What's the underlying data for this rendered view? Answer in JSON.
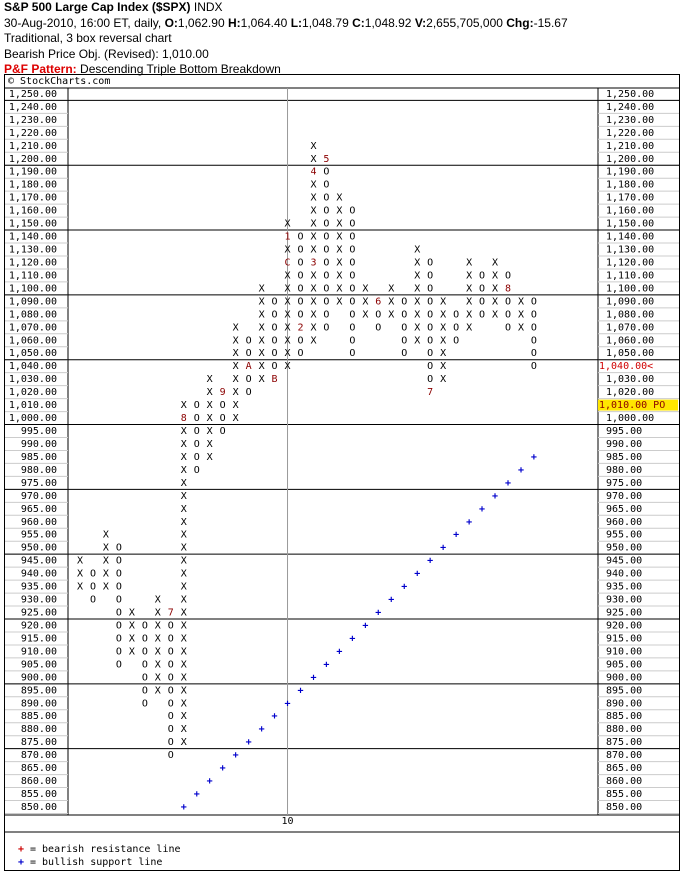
{
  "header": {
    "title": "S&P 500 Large Cap Index ($SPX)",
    "exchange": "INDX",
    "date": "30-Aug-2010, 16:00 ET, daily,",
    "quote": [
      {
        "key": "O:",
        "value": "1,062.90"
      },
      {
        "key": "H:",
        "value": "1,064.40"
      },
      {
        "key": "L:",
        "value": "1,048.79"
      },
      {
        "key": "C:",
        "value": "1,048.92"
      },
      {
        "key": "V:",
        "value": "2,655,705,000"
      },
      {
        "key": "Chg:",
        "value": "-15.67"
      }
    ],
    "chart_kind": "Traditional, 3 box reversal chart",
    "objective": "Bearish Price Obj. (Revised): 1,010.00",
    "pattern_key": "P&F Pattern:",
    "pattern": "Descending Triple Bottom Breakdown"
  },
  "chart_data": {
    "type": "point-and-figure",
    "copyright": "© StockCharts.com",
    "yticks": [
      {
        "value": 850,
        "label": "850.00"
      },
      {
        "value": 855,
        "label": "855.00"
      },
      {
        "value": 860,
        "label": "860.00"
      },
      {
        "value": 865,
        "label": "865.00"
      },
      {
        "value": 870,
        "label": "870.00"
      },
      {
        "value": 875,
        "label": "875.00"
      },
      {
        "value": 880,
        "label": "880.00"
      },
      {
        "value": 885,
        "label": "885.00"
      },
      {
        "value": 890,
        "label": "890.00"
      },
      {
        "value": 895,
        "label": "895.00"
      },
      {
        "value": 900,
        "label": "900.00"
      },
      {
        "value": 905,
        "label": "905.00"
      },
      {
        "value": 910,
        "label": "910.00"
      },
      {
        "value": 915,
        "label": "915.00"
      },
      {
        "value": 920,
        "label": "920.00"
      },
      {
        "value": 925,
        "label": "925.00"
      },
      {
        "value": 930,
        "label": "930.00"
      },
      {
        "value": 935,
        "label": "935.00"
      },
      {
        "value": 940,
        "label": "940.00"
      },
      {
        "value": 945,
        "label": "945.00"
      },
      {
        "value": 950,
        "label": "950.00"
      },
      {
        "value": 955,
        "label": "955.00"
      },
      {
        "value": 960,
        "label": "960.00"
      },
      {
        "value": 965,
        "label": "965.00"
      },
      {
        "value": 970,
        "label": "970.00"
      },
      {
        "value": 975,
        "label": "975.00"
      },
      {
        "value": 980,
        "label": "980.00"
      },
      {
        "value": 985,
        "label": "985.00"
      },
      {
        "value": 990,
        "label": "990.00"
      },
      {
        "value": 995,
        "label": "995.00"
      },
      {
        "value": 1000,
        "label": "1,000.00"
      },
      {
        "value": 1010,
        "label": "1,010.00"
      },
      {
        "value": 1020,
        "label": "1,020.00"
      },
      {
        "value": 1030,
        "label": "1,030.00"
      },
      {
        "value": 1040,
        "label": "1,040.00"
      },
      {
        "value": 1050,
        "label": "1,050.00"
      },
      {
        "value": 1060,
        "label": "1,060.00"
      },
      {
        "value": 1070,
        "label": "1,070.00"
      },
      {
        "value": 1080,
        "label": "1,080.00"
      },
      {
        "value": 1090,
        "label": "1,090.00"
      },
      {
        "value": 1100,
        "label": "1,100.00"
      },
      {
        "value": 1110,
        "label": "1,110.00"
      },
      {
        "value": 1120,
        "label": "1,120.00"
      },
      {
        "value": 1130,
        "label": "1,130.00"
      },
      {
        "value": 1140,
        "label": "1,140.00"
      },
      {
        "value": 1150,
        "label": "1,150.00"
      },
      {
        "value": 1160,
        "label": "1,160.00"
      },
      {
        "value": 1170,
        "label": "1,170.00"
      },
      {
        "value": 1180,
        "label": "1,180.00"
      },
      {
        "value": 1190,
        "label": "1,190.00"
      },
      {
        "value": 1200,
        "label": "1,200.00"
      },
      {
        "value": 1210,
        "label": "1,210.00"
      },
      {
        "value": 1220,
        "label": "1,220.00"
      },
      {
        "value": 1230,
        "label": "1,230.00"
      },
      {
        "value": 1240,
        "label": "1,240.00"
      },
      {
        "value": 1250,
        "label": "1,250.00"
      }
    ],
    "current_price": {
      "value": 1040,
      "label": "1,040.00<",
      "color": "#d00000"
    },
    "price_objective": {
      "value": 1010,
      "label": "1,010.00 PO",
      "color": "#ffe600"
    },
    "columns": [
      {
        "kind": "X",
        "boxes": [
          935,
          940,
          945
        ]
      },
      {
        "kind": "O",
        "boxes": [
          930,
          935,
          940
        ]
      },
      {
        "kind": "X",
        "boxes": [
          935,
          940,
          945,
          950,
          955
        ]
      },
      {
        "kind": "O",
        "boxes": [
          905,
          910,
          915,
          920,
          925,
          930,
          935,
          940,
          945,
          950
        ]
      },
      {
        "kind": "X",
        "boxes": [
          910,
          915,
          920,
          925
        ]
      },
      {
        "kind": "O",
        "boxes": [
          890,
          895,
          900,
          905,
          910,
          915,
          920
        ]
      },
      {
        "kind": "X",
        "boxes": [
          895,
          900,
          905,
          910,
          915,
          920,
          925,
          930
        ]
      },
      {
        "kind": "O",
        "boxes": [
          870,
          875,
          880,
          885,
          890,
          895,
          900,
          905,
          910,
          915,
          920
        ],
        "months": [
          {
            "value": 925,
            "label": "7"
          }
        ]
      },
      {
        "kind": "X",
        "boxes": [
          875,
          880,
          885,
          890,
          895,
          900,
          905,
          910,
          915,
          920,
          925,
          930,
          935,
          940,
          945,
          950,
          955,
          960,
          965,
          970,
          975,
          980,
          985,
          990,
          995,
          1010
        ],
        "months": [
          {
            "value": 1000,
            "label": "8"
          }
        ]
      },
      {
        "kind": "O",
        "boxes": [
          980,
          985,
          990,
          995,
          1000,
          1010
        ]
      },
      {
        "kind": "X",
        "boxes": [
          985,
          990,
          995,
          1000,
          1010,
          1020,
          1030
        ]
      },
      {
        "kind": "O",
        "boxes": [
          995,
          1000,
          1010
        ],
        "months": [
          {
            "value": 1020,
            "label": "9"
          }
        ]
      },
      {
        "kind": "X",
        "boxes": [
          1000,
          1010,
          1020,
          1030,
          1040,
          1050,
          1060,
          1070
        ]
      },
      {
        "kind": "O",
        "boxes": [
          1020,
          1030,
          1050,
          1060
        ],
        "months": [
          {
            "value": 1040,
            "label": "A"
          }
        ]
      },
      {
        "kind": "X",
        "boxes": [
          1030,
          1040,
          1050,
          1060,
          1070,
          1080,
          1090,
          1100
        ]
      },
      {
        "kind": "O",
        "boxes": [
          1040,
          1050,
          1060,
          1070,
          1080,
          1090
        ],
        "months": [
          {
            "value": 1030,
            "label": "B"
          }
        ]
      },
      {
        "kind": "X",
        "boxes": [
          1040,
          1050,
          1060,
          1070,
          1080,
          1090,
          1100,
          1110,
          1130,
          1150
        ],
        "months": [
          {
            "value": 1120,
            "label": "C"
          },
          {
            "value": 1140,
            "label": "1"
          }
        ]
      },
      {
        "kind": "O",
        "boxes": [
          1050,
          1060,
          1080,
          1090,
          1100,
          1110,
          1120,
          1130,
          1140
        ],
        "months": [
          {
            "value": 1070,
            "label": "2"
          }
        ]
      },
      {
        "kind": "X",
        "boxes": [
          1060,
          1070,
          1080,
          1090,
          1100,
          1110,
          1130,
          1140,
          1150,
          1160,
          1170,
          1180,
          1200,
          1210
        ],
        "months": [
          {
            "value": 1120,
            "label": "3"
          },
          {
            "value": 1190,
            "label": "4"
          }
        ]
      },
      {
        "kind": "O",
        "boxes": [
          1070,
          1080,
          1090,
          1100,
          1110,
          1120,
          1130,
          1140,
          1150,
          1160,
          1170,
          1180,
          1190
        ],
        "months": [
          {
            "value": 1200,
            "label": "5"
          }
        ]
      },
      {
        "kind": "X",
        "boxes": [
          1090,
          1100,
          1110,
          1120,
          1130,
          1140,
          1150,
          1160,
          1170
        ]
      },
      {
        "kind": "O",
        "boxes": [
          1050,
          1060,
          1070,
          1080,
          1090,
          1100,
          1110,
          1120,
          1130,
          1140,
          1150,
          1160
        ]
      },
      {
        "kind": "X",
        "boxes": [
          1080,
          1090,
          1100
        ]
      },
      {
        "kind": "O",
        "boxes": [
          1070,
          1080
        ],
        "months": [
          {
            "value": 1090,
            "label": "6"
          }
        ]
      },
      {
        "kind": "X",
        "boxes": [
          1080,
          1090,
          1100
        ]
      },
      {
        "kind": "O",
        "boxes": [
          1050,
          1060,
          1070,
          1080,
          1090
        ]
      },
      {
        "kind": "X",
        "boxes": [
          1060,
          1070,
          1080,
          1090,
          1100,
          1110,
          1120,
          1130
        ]
      },
      {
        "kind": "O",
        "boxes": [
          1030,
          1040,
          1050,
          1060,
          1070,
          1080,
          1090,
          1100,
          1110,
          1120
        ],
        "months": [
          {
            "value": 1020,
            "label": "7"
          }
        ]
      },
      {
        "kind": "X",
        "boxes": [
          1030,
          1040,
          1050,
          1060,
          1070,
          1080,
          1090
        ]
      },
      {
        "kind": "O",
        "boxes": [
          1060,
          1070,
          1080
        ]
      },
      {
        "kind": "X",
        "boxes": [
          1070,
          1080,
          1090,
          1100,
          1110,
          1120
        ]
      },
      {
        "kind": "O",
        "boxes": [
          1080,
          1090,
          1100,
          1110
        ]
      },
      {
        "kind": "X",
        "boxes": [
          1080,
          1090,
          1100,
          1110,
          1120
        ]
      },
      {
        "kind": "O",
        "boxes": [
          1070,
          1080,
          1090,
          1110
        ],
        "months": [
          {
            "value": 1100,
            "label": "8"
          }
        ]
      },
      {
        "kind": "X",
        "boxes": [
          1070,
          1080,
          1090
        ]
      },
      {
        "kind": "O",
        "boxes": [
          1040,
          1050,
          1060,
          1070,
          1080,
          1090
        ]
      }
    ],
    "month_color": "#8b0000",
    "x_markers": [
      {
        "column": 16,
        "label": "10"
      }
    ],
    "support_line": {
      "symbol": "+",
      "color": "#0000cc",
      "start_column": 8,
      "values": [
        850,
        855,
        860,
        865,
        870,
        875,
        880,
        885,
        890,
        895,
        900,
        905,
        910,
        915,
        920,
        925,
        930,
        935,
        940,
        945,
        950,
        955,
        960,
        965,
        970,
        975,
        980,
        985
      ]
    },
    "legend": [
      {
        "symbol": "+",
        "color": "#cc0000",
        "label": "= bearish resistance line"
      },
      {
        "symbol": "+",
        "color": "#0000cc",
        "label": "= bullish support line"
      }
    ]
  }
}
